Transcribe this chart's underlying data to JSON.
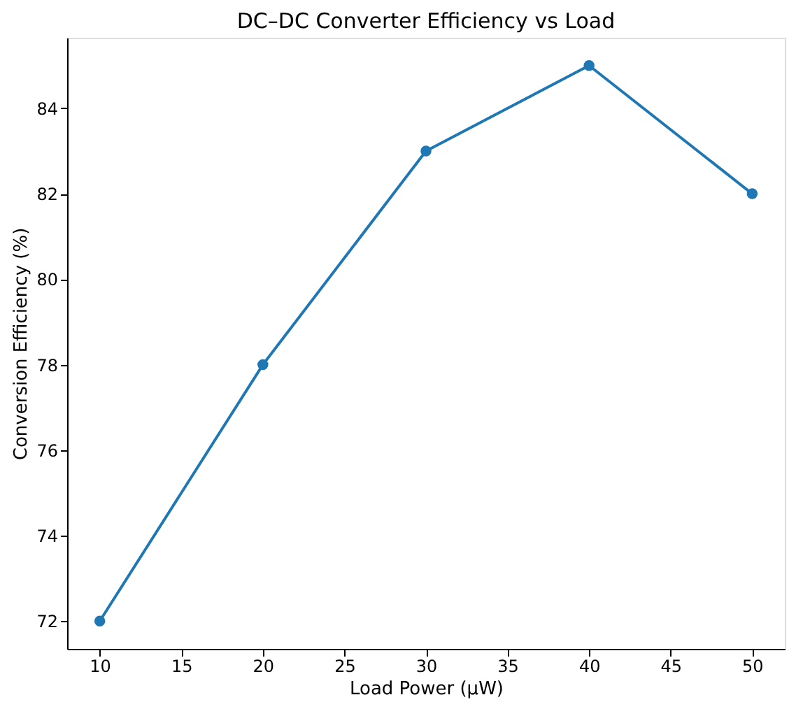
{
  "chart_data": {
    "type": "line",
    "title": "DC–DC Converter Efficiency vs Load",
    "xlabel": "Load Power (μW)",
    "ylabel": "Conversion Efficiency (%)",
    "x": [
      10,
      20,
      30,
      40,
      50
    ],
    "series": [
      {
        "color": "#1f77b4",
        "values": [
          72,
          78,
          83,
          85,
          82
        ]
      }
    ],
    "xlim": [
      8,
      52
    ],
    "xticks": [
      10,
      15,
      20,
      25,
      30,
      35,
      40,
      45,
      50
    ],
    "ylim": [
      71.35,
      85.65
    ],
    "yticks": [
      72,
      74,
      76,
      78,
      80,
      82,
      84
    ],
    "marker": "circle",
    "line_style": "solid",
    "grid": false
  }
}
